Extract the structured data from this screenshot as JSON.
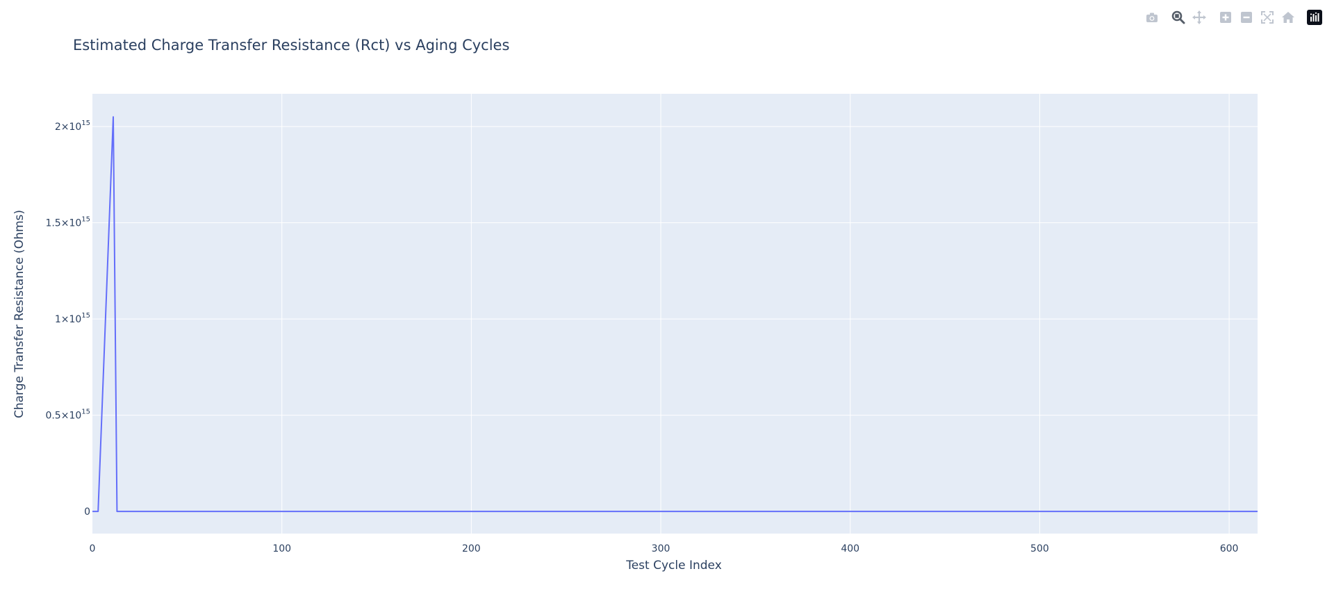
{
  "modebar": {
    "buttons": [
      {
        "name": "camera-icon",
        "active": false
      },
      {
        "name": "zoom-icon",
        "active": true
      },
      {
        "name": "pan-icon",
        "active": false
      },
      {
        "name": "zoom-in-icon",
        "active": false
      },
      {
        "name": "zoom-out-icon",
        "active": false
      },
      {
        "name": "autoscale-icon",
        "active": false
      },
      {
        "name": "reset-axes-icon",
        "active": false
      },
      {
        "name": "plotly-logo-icon",
        "active": false
      }
    ]
  },
  "colors": {
    "plot_bg": "#e5ecf6",
    "grid": "#ffffff",
    "line": "#636efa",
    "text": "#2a3f5f"
  },
  "chart_data": {
    "type": "line",
    "title": "Estimated Charge Transfer Resistance (Rct) vs Aging Cycles",
    "xlabel": "Test Cycle Index",
    "ylabel": "Charge Transfer Resistance (Ohms)",
    "xlim": [
      0,
      615
    ],
    "ylim": [
      -115000000000000.0,
      2170000000000000.0
    ],
    "x_ticks": [
      0,
      100,
      200,
      300,
      400,
      500,
      600
    ],
    "y_ticks": [
      {
        "value": 0,
        "base": "0",
        "exp": ""
      },
      {
        "value": 500000000000000.0,
        "base": "0.5×10",
        "exp": "15"
      },
      {
        "value": 1000000000000000.0,
        "base": "1×10",
        "exp": "15"
      },
      {
        "value": 1500000000000000.0,
        "base": "1.5×10",
        "exp": "15"
      },
      {
        "value": 2000000000000000.0,
        "base": "2×10",
        "exp": "15"
      }
    ],
    "grid": true,
    "series": [
      {
        "x": [
          0,
          3,
          11,
          13,
          615
        ],
        "y": [
          0,
          0,
          2050000000000000.0,
          0,
          0
        ]
      }
    ]
  }
}
